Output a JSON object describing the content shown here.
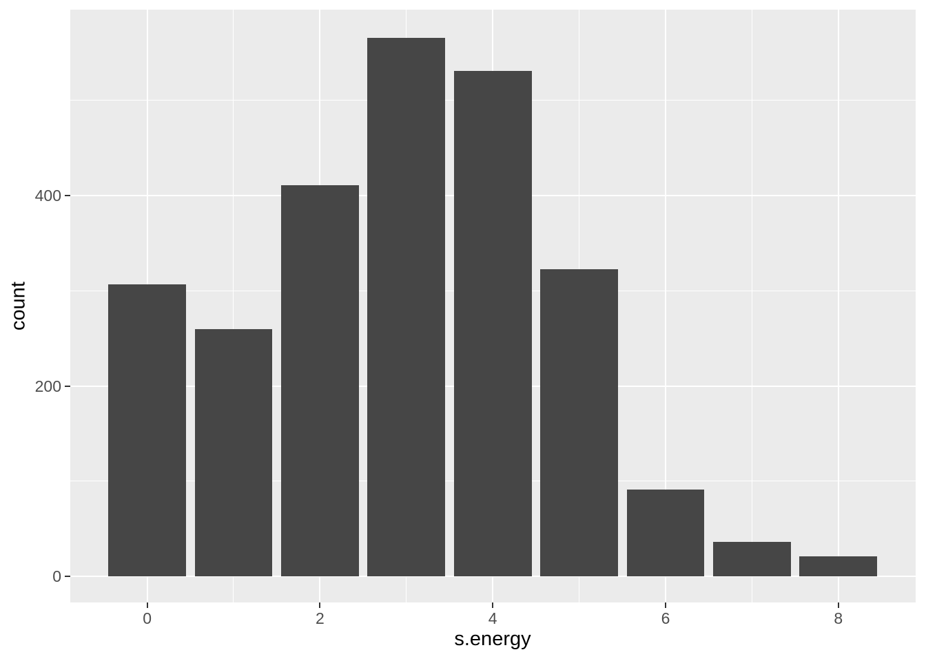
{
  "chart_data": {
    "type": "bar",
    "subtype": "histogram",
    "title": "",
    "xlabel": "s.energy",
    "ylabel": "count",
    "x": [
      0,
      1,
      2,
      3,
      4,
      5,
      6,
      7,
      8
    ],
    "values": [
      307,
      260,
      411,
      566,
      531,
      323,
      91,
      36,
      21
    ],
    "bar_width": 0.9,
    "xlim": [
      -0.89,
      8.895
    ],
    "ylim": [
      -27.5,
      595.5
    ],
    "x_major_ticks": [
      0,
      2,
      4,
      6,
      8
    ],
    "x_tick_labels": [
      "0",
      "2",
      "4",
      "6",
      "8"
    ],
    "x_minor_gridlines": [
      1,
      3,
      5,
      7
    ],
    "y_major_ticks": [
      0,
      200,
      400
    ],
    "y_tick_labels": [
      "0",
      "200",
      "400"
    ],
    "y_minor_gridlines": [
      100,
      300,
      500
    ],
    "grid": "on",
    "legend": "none",
    "colors": {
      "figure_background": "#FFFFFF",
      "panel_background": "#EBEBEB",
      "grid_line": "#FFFFFF",
      "bar_fill": "#464646",
      "tick_mark": "#333333",
      "tick_label": "#4D4D4D",
      "axis_title": "#000000"
    }
  }
}
